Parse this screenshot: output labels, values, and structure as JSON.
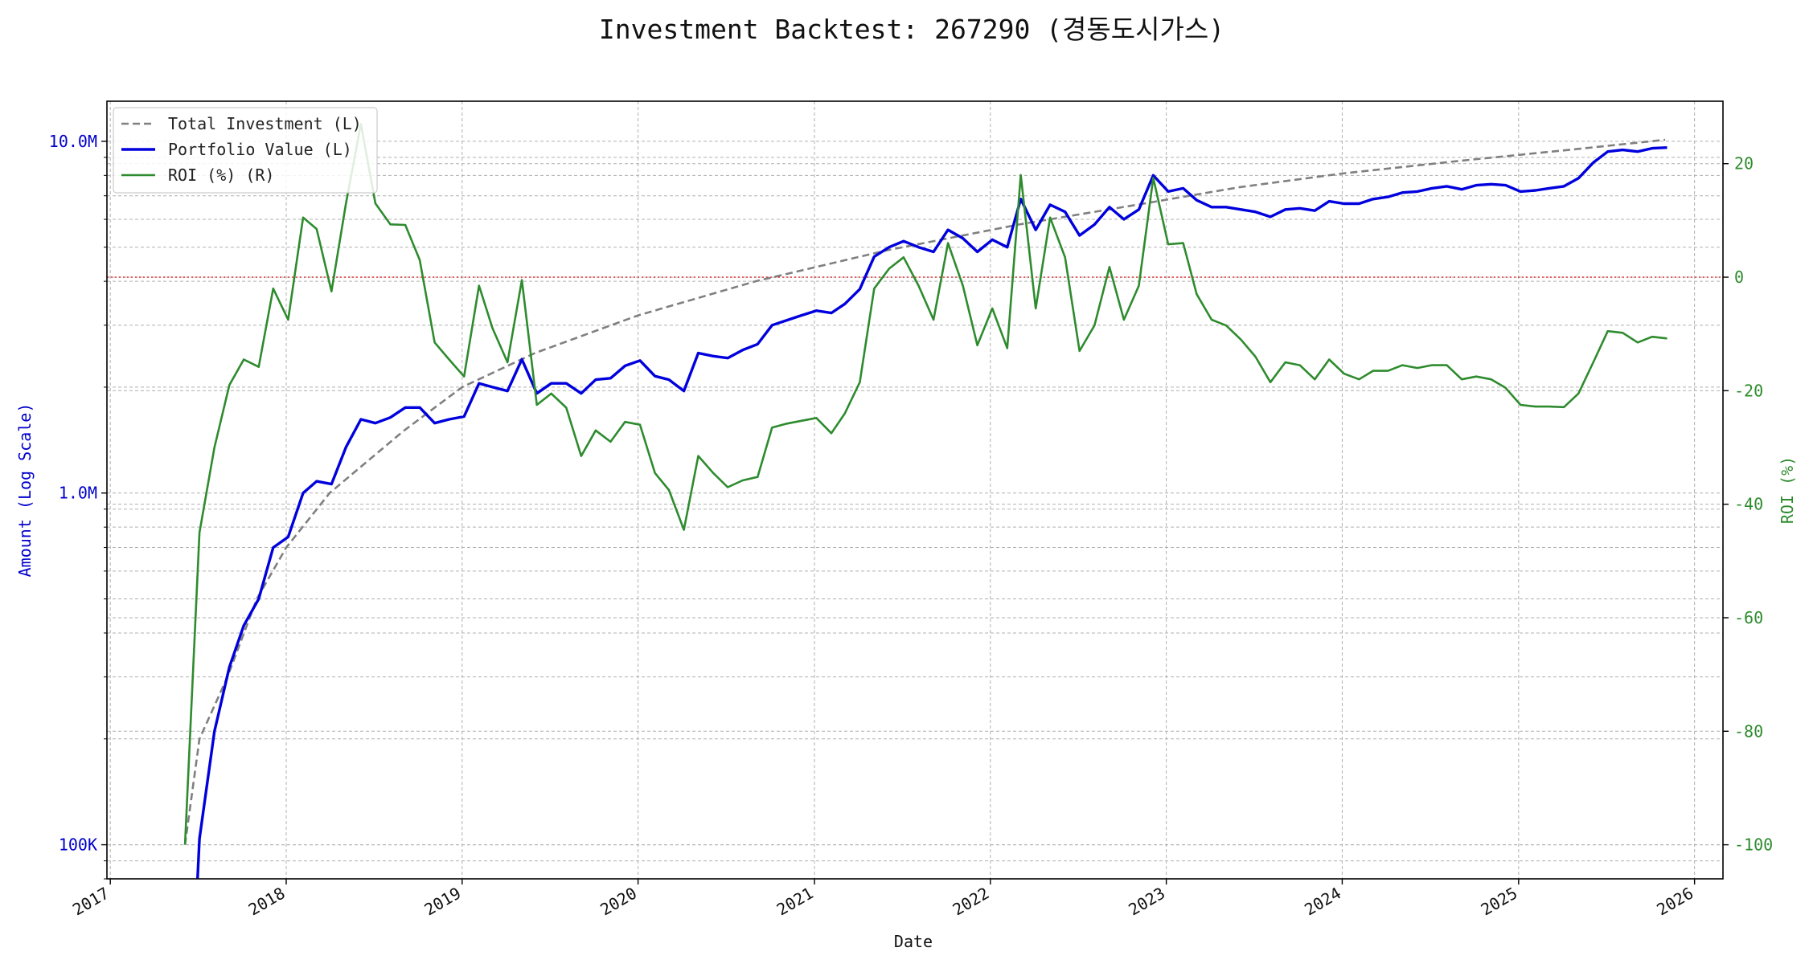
{
  "chart_data": {
    "type": "line",
    "title": "Investment Backtest: 267290 (경동도시가스)",
    "xlabel": "Date",
    "ylabel_left": "Amount (Log Scale)",
    "ylabel_right": "ROI (%)",
    "x_ticks": [
      "2017",
      "2018",
      "2019",
      "2020",
      "2021",
      "2022",
      "2023",
      "2024",
      "2025",
      "2026"
    ],
    "y_left_ticks": [
      "100K",
      "1.0M",
      "10.0M"
    ],
    "y_right_ticks": [
      "20",
      "0",
      "-20",
      "-40",
      "-60",
      "-80",
      "-100"
    ],
    "left_scale": "log",
    "ylim_left": [
      80000,
      13000000
    ],
    "ylim_right": [
      -106,
      31
    ],
    "xlim": [
      "2016-12-25",
      "2026-03-01"
    ],
    "grid": true,
    "legend_position": "top-left",
    "zero_line_roi": 0,
    "colors": {
      "total": "#808080",
      "portfolio": "#0000dd",
      "roi": "#2e8b2e",
      "zero": "#dd2222",
      "grid": "#b0b0b0"
    },
    "legend": [
      "Total Investment (L)",
      "Portfolio Value (L)",
      "ROI (%) (R)"
    ],
    "series": [
      {
        "name": "Total Investment (L)",
        "axis": "left",
        "style": "dashed",
        "points": [
          [
            "2017-06-05",
            100000
          ],
          [
            "2017-07-05",
            200000
          ],
          [
            "2017-09-01",
            300000
          ],
          [
            "2017-11-01",
            500000
          ],
          [
            "2018-01-01",
            700000
          ],
          [
            "2018-04-01",
            1000000
          ],
          [
            "2018-09-01",
            1500000
          ],
          [
            "2019-01-01",
            2000000
          ],
          [
            "2019-06-01",
            2500000
          ],
          [
            "2020-01-01",
            3200000
          ],
          [
            "2020-09-01",
            4000000
          ],
          [
            "2021-06-01",
            4900000
          ],
          [
            "2022-03-01",
            5800000
          ],
          [
            "2022-11-01",
            6600000
          ],
          [
            "2023-06-01",
            7400000
          ],
          [
            "2024-01-01",
            8100000
          ],
          [
            "2024-09-01",
            8800000
          ],
          [
            "2025-05-01",
            9500000
          ],
          [
            "2025-11-01",
            10100000
          ]
        ]
      },
      {
        "name": "Portfolio Value (L)",
        "axis": "left",
        "style": "solid",
        "points": [
          [
            "2017-07-01",
            80000
          ],
          [
            "2017-07-05",
            104000
          ],
          [
            "2017-08-05",
            210000
          ],
          [
            "2017-09-05",
            320000
          ],
          [
            "2017-10-05",
            420000
          ],
          [
            "2017-11-05",
            500000
          ],
          [
            "2017-12-05",
            700000
          ],
          [
            "2018-01-05",
            750000
          ],
          [
            "2018-02-05",
            1000000
          ],
          [
            "2018-03-05",
            1080000
          ],
          [
            "2018-04-05",
            1060000
          ],
          [
            "2018-05-05",
            1350000
          ],
          [
            "2018-06-05",
            1620000
          ],
          [
            "2018-07-05",
            1580000
          ],
          [
            "2018-08-05",
            1640000
          ],
          [
            "2018-09-05",
            1750000
          ],
          [
            "2018-10-05",
            1750000
          ],
          [
            "2018-11-05",
            1580000
          ],
          [
            "2018-12-05",
            1620000
          ],
          [
            "2019-01-05",
            1650000
          ],
          [
            "2019-02-05",
            2050000
          ],
          [
            "2019-03-05",
            2000000
          ],
          [
            "2019-04-05",
            1950000
          ],
          [
            "2019-05-05",
            2400000
          ],
          [
            "2019-06-05",
            1920000
          ],
          [
            "2019-07-05",
            2050000
          ],
          [
            "2019-08-05",
            2050000
          ],
          [
            "2019-09-05",
            1920000
          ],
          [
            "2019-10-05",
            2100000
          ],
          [
            "2019-11-05",
            2120000
          ],
          [
            "2019-12-05",
            2300000
          ],
          [
            "2020-01-05",
            2380000
          ],
          [
            "2020-02-05",
            2150000
          ],
          [
            "2020-03-05",
            2100000
          ],
          [
            "2020-04-05",
            1950000
          ],
          [
            "2020-05-05",
            2500000
          ],
          [
            "2020-06-05",
            2450000
          ],
          [
            "2020-07-05",
            2420000
          ],
          [
            "2020-08-05",
            2550000
          ],
          [
            "2020-09-05",
            2650000
          ],
          [
            "2020-10-05",
            3000000
          ],
          [
            "2020-11-05",
            3100000
          ],
          [
            "2020-12-05",
            3200000
          ],
          [
            "2021-01-05",
            3300000
          ],
          [
            "2021-02-05",
            3250000
          ],
          [
            "2021-03-05",
            3450000
          ],
          [
            "2021-04-05",
            3800000
          ],
          [
            "2021-05-05",
            4700000
          ],
          [
            "2021-06-05",
            5000000
          ],
          [
            "2021-07-05",
            5200000
          ],
          [
            "2021-08-05",
            5000000
          ],
          [
            "2021-09-05",
            4850000
          ],
          [
            "2021-10-05",
            5600000
          ],
          [
            "2021-11-05",
            5300000
          ],
          [
            "2021-12-05",
            4850000
          ],
          [
            "2022-01-05",
            5250000
          ],
          [
            "2022-02-05",
            5000000
          ],
          [
            "2022-03-05",
            6850000
          ],
          [
            "2022-04-05",
            5600000
          ],
          [
            "2022-05-05",
            6600000
          ],
          [
            "2022-06-05",
            6300000
          ],
          [
            "2022-07-05",
            5400000
          ],
          [
            "2022-08-05",
            5800000
          ],
          [
            "2022-09-05",
            6500000
          ],
          [
            "2022-10-05",
            6000000
          ],
          [
            "2022-11-05",
            6400000
          ],
          [
            "2022-12-05",
            8000000
          ],
          [
            "2023-01-05",
            7200000
          ],
          [
            "2023-02-05",
            7350000
          ],
          [
            "2023-03-05",
            6800000
          ],
          [
            "2023-04-05",
            6500000
          ],
          [
            "2023-05-05",
            6500000
          ],
          [
            "2023-06-05",
            6400000
          ],
          [
            "2023-07-05",
            6300000
          ],
          [
            "2023-08-05",
            6100000
          ],
          [
            "2023-09-05",
            6400000
          ],
          [
            "2023-10-05",
            6450000
          ],
          [
            "2023-11-05",
            6350000
          ],
          [
            "2023-12-05",
            6750000
          ],
          [
            "2024-01-05",
            6650000
          ],
          [
            "2024-02-05",
            6650000
          ],
          [
            "2024-03-05",
            6850000
          ],
          [
            "2024-04-05",
            6950000
          ],
          [
            "2024-05-05",
            7150000
          ],
          [
            "2024-06-05",
            7200000
          ],
          [
            "2024-07-05",
            7350000
          ],
          [
            "2024-08-05",
            7450000
          ],
          [
            "2024-09-05",
            7300000
          ],
          [
            "2024-10-05",
            7500000
          ],
          [
            "2024-11-05",
            7550000
          ],
          [
            "2024-12-05",
            7500000
          ],
          [
            "2025-01-05",
            7200000
          ],
          [
            "2025-02-05",
            7250000
          ],
          [
            "2025-03-05",
            7350000
          ],
          [
            "2025-04-05",
            7450000
          ],
          [
            "2025-05-05",
            7850000
          ],
          [
            "2025-06-05",
            8700000
          ],
          [
            "2025-07-05",
            9350000
          ],
          [
            "2025-08-05",
            9450000
          ],
          [
            "2025-09-05",
            9350000
          ],
          [
            "2025-10-05",
            9550000
          ],
          [
            "2025-11-05",
            9600000
          ]
        ]
      },
      {
        "name": "ROI (%) (R)",
        "axis": "right",
        "style": "solid",
        "points": [
          [
            "2017-06-05",
            -100
          ],
          [
            "2017-07-05",
            -45
          ],
          [
            "2017-08-05",
            -30
          ],
          [
            "2017-09-05",
            -19
          ],
          [
            "2017-10-05",
            -14.5
          ],
          [
            "2017-11-05",
            -15.8
          ],
          [
            "2017-12-05",
            -2
          ],
          [
            "2018-01-05",
            -7.5
          ],
          [
            "2018-02-05",
            10.5
          ],
          [
            "2018-03-05",
            8.5
          ],
          [
            "2018-04-05",
            -2.5
          ],
          [
            "2018-05-05",
            13
          ],
          [
            "2018-06-05",
            27
          ],
          [
            "2018-07-05",
            13
          ],
          [
            "2018-08-05",
            9.3
          ],
          [
            "2018-09-05",
            9.2
          ],
          [
            "2018-10-05",
            3
          ],
          [
            "2018-11-05",
            -11.5
          ],
          [
            "2018-12-05",
            -14.5
          ],
          [
            "2019-01-05",
            -17.5
          ],
          [
            "2019-02-05",
            -1.5
          ],
          [
            "2019-03-05",
            -9
          ],
          [
            "2019-04-05",
            -15
          ],
          [
            "2019-05-05",
            -0.5
          ],
          [
            "2019-06-05",
            -22.5
          ],
          [
            "2019-07-05",
            -20.5
          ],
          [
            "2019-08-05",
            -23
          ],
          [
            "2019-09-05",
            -31.5
          ],
          [
            "2019-10-05",
            -27
          ],
          [
            "2019-11-05",
            -29
          ],
          [
            "2019-12-05",
            -25.5
          ],
          [
            "2020-01-05",
            -26
          ],
          [
            "2020-02-05",
            -34.5
          ],
          [
            "2020-03-05",
            -37.5
          ],
          [
            "2020-04-05",
            -44.5
          ],
          [
            "2020-05-05",
            -31.5
          ],
          [
            "2020-06-05",
            -34.5
          ],
          [
            "2020-07-05",
            -37
          ],
          [
            "2020-08-05",
            -35.8
          ],
          [
            "2020-09-05",
            -35.2
          ],
          [
            "2020-10-05",
            -26.5
          ],
          [
            "2020-11-05",
            -25.8
          ],
          [
            "2020-12-05",
            -25.3
          ],
          [
            "2021-01-05",
            -24.8
          ],
          [
            "2021-02-05",
            -27.5
          ],
          [
            "2021-03-05",
            -24
          ],
          [
            "2021-04-05",
            -18.5
          ],
          [
            "2021-05-05",
            -2
          ],
          [
            "2021-06-05",
            1.5
          ],
          [
            "2021-07-05",
            3.5
          ],
          [
            "2021-08-05",
            -1.5
          ],
          [
            "2021-09-05",
            -7.5
          ],
          [
            "2021-10-05",
            6
          ],
          [
            "2021-11-05",
            -1.5
          ],
          [
            "2021-12-05",
            -12
          ],
          [
            "2022-01-05",
            -5.5
          ],
          [
            "2022-02-05",
            -12.5
          ],
          [
            "2022-03-05",
            18
          ],
          [
            "2022-04-05",
            -5.5
          ],
          [
            "2022-05-05",
            10.5
          ],
          [
            "2022-06-05",
            3.5
          ],
          [
            "2022-07-05",
            -13
          ],
          [
            "2022-08-05",
            -8.5
          ],
          [
            "2022-09-05",
            1.8
          ],
          [
            "2022-10-05",
            -7.5
          ],
          [
            "2022-11-05",
            -1.5
          ],
          [
            "2022-12-05",
            17.5
          ],
          [
            "2023-01-05",
            5.8
          ],
          [
            "2023-02-05",
            6
          ],
          [
            "2023-03-05",
            -3
          ],
          [
            "2023-04-05",
            -7.5
          ],
          [
            "2023-05-05",
            -8.5
          ],
          [
            "2023-06-05",
            -11
          ],
          [
            "2023-07-05",
            -14
          ],
          [
            "2023-08-05",
            -18.5
          ],
          [
            "2023-09-05",
            -15
          ],
          [
            "2023-10-05",
            -15.5
          ],
          [
            "2023-11-05",
            -18
          ],
          [
            "2023-12-05",
            -14.5
          ],
          [
            "2024-01-05",
            -17
          ],
          [
            "2024-02-05",
            -18
          ],
          [
            "2024-03-05",
            -16.5
          ],
          [
            "2024-04-05",
            -16.5
          ],
          [
            "2024-05-05",
            -15.5
          ],
          [
            "2024-06-05",
            -16
          ],
          [
            "2024-07-05",
            -15.5
          ],
          [
            "2024-08-05",
            -15.5
          ],
          [
            "2024-09-05",
            -18
          ],
          [
            "2024-10-05",
            -17.5
          ],
          [
            "2024-11-05",
            -18
          ],
          [
            "2024-12-05",
            -19.5
          ],
          [
            "2025-01-05",
            -22.5
          ],
          [
            "2025-02-05",
            -22.8
          ],
          [
            "2025-03-05",
            -22.8
          ],
          [
            "2025-04-05",
            -22.9
          ],
          [
            "2025-05-05",
            -20.5
          ],
          [
            "2025-06-05",
            -15
          ],
          [
            "2025-07-05",
            -9.5
          ],
          [
            "2025-08-05",
            -9.8
          ],
          [
            "2025-09-05",
            -11.5
          ],
          [
            "2025-10-05",
            -10.5
          ],
          [
            "2025-11-05",
            -10.8
          ]
        ]
      }
    ]
  }
}
